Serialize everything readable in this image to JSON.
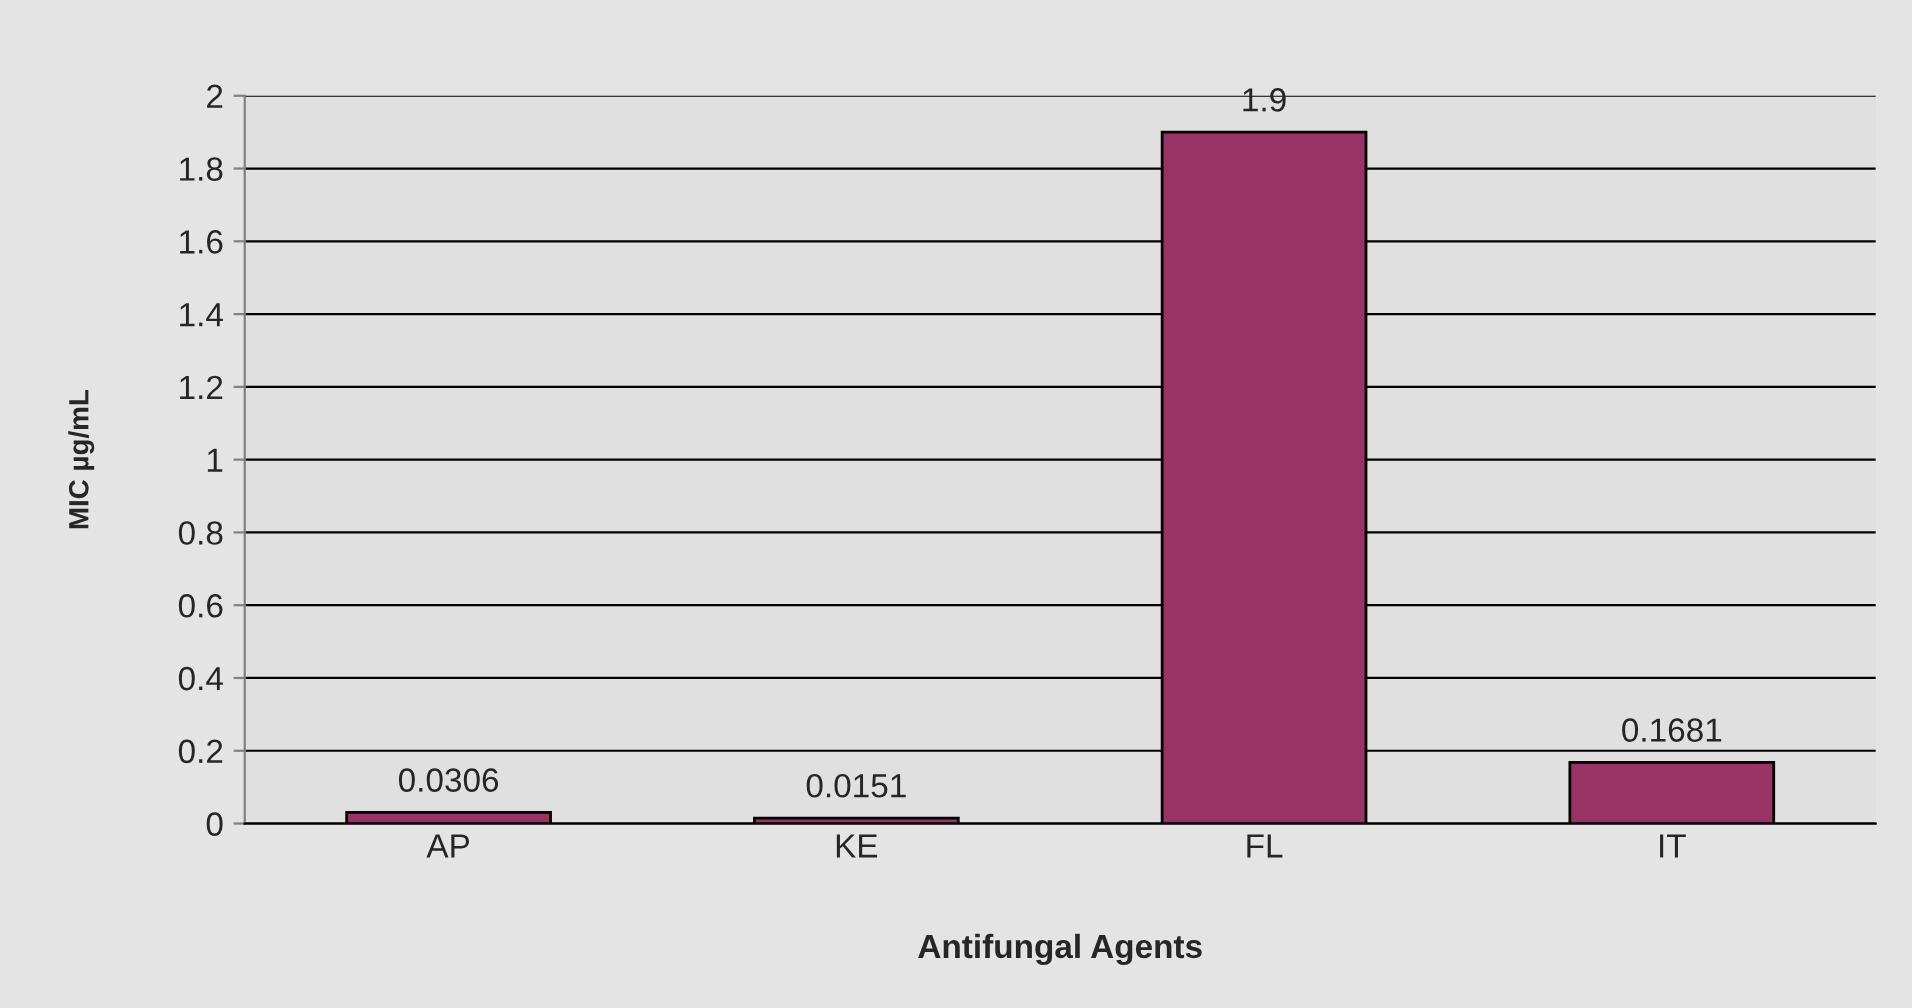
{
  "chart_data": {
    "type": "bar",
    "xlabel": "Antifungal Agents",
    "ylabel": "MIC µg/mL",
    "categories": [
      "AP",
      "KE",
      "FL",
      "IT"
    ],
    "values": [
      0.0306,
      0.0151,
      1.9,
      0.1681
    ],
    "color": "#993366",
    "ylim": [
      0,
      2
    ],
    "yticks": [
      0,
      0.2,
      0.4,
      0.6,
      0.8,
      1,
      1.2,
      1.4,
      1.6,
      1.8,
      2
    ],
    "grid": "y",
    "data_labels": true
  }
}
